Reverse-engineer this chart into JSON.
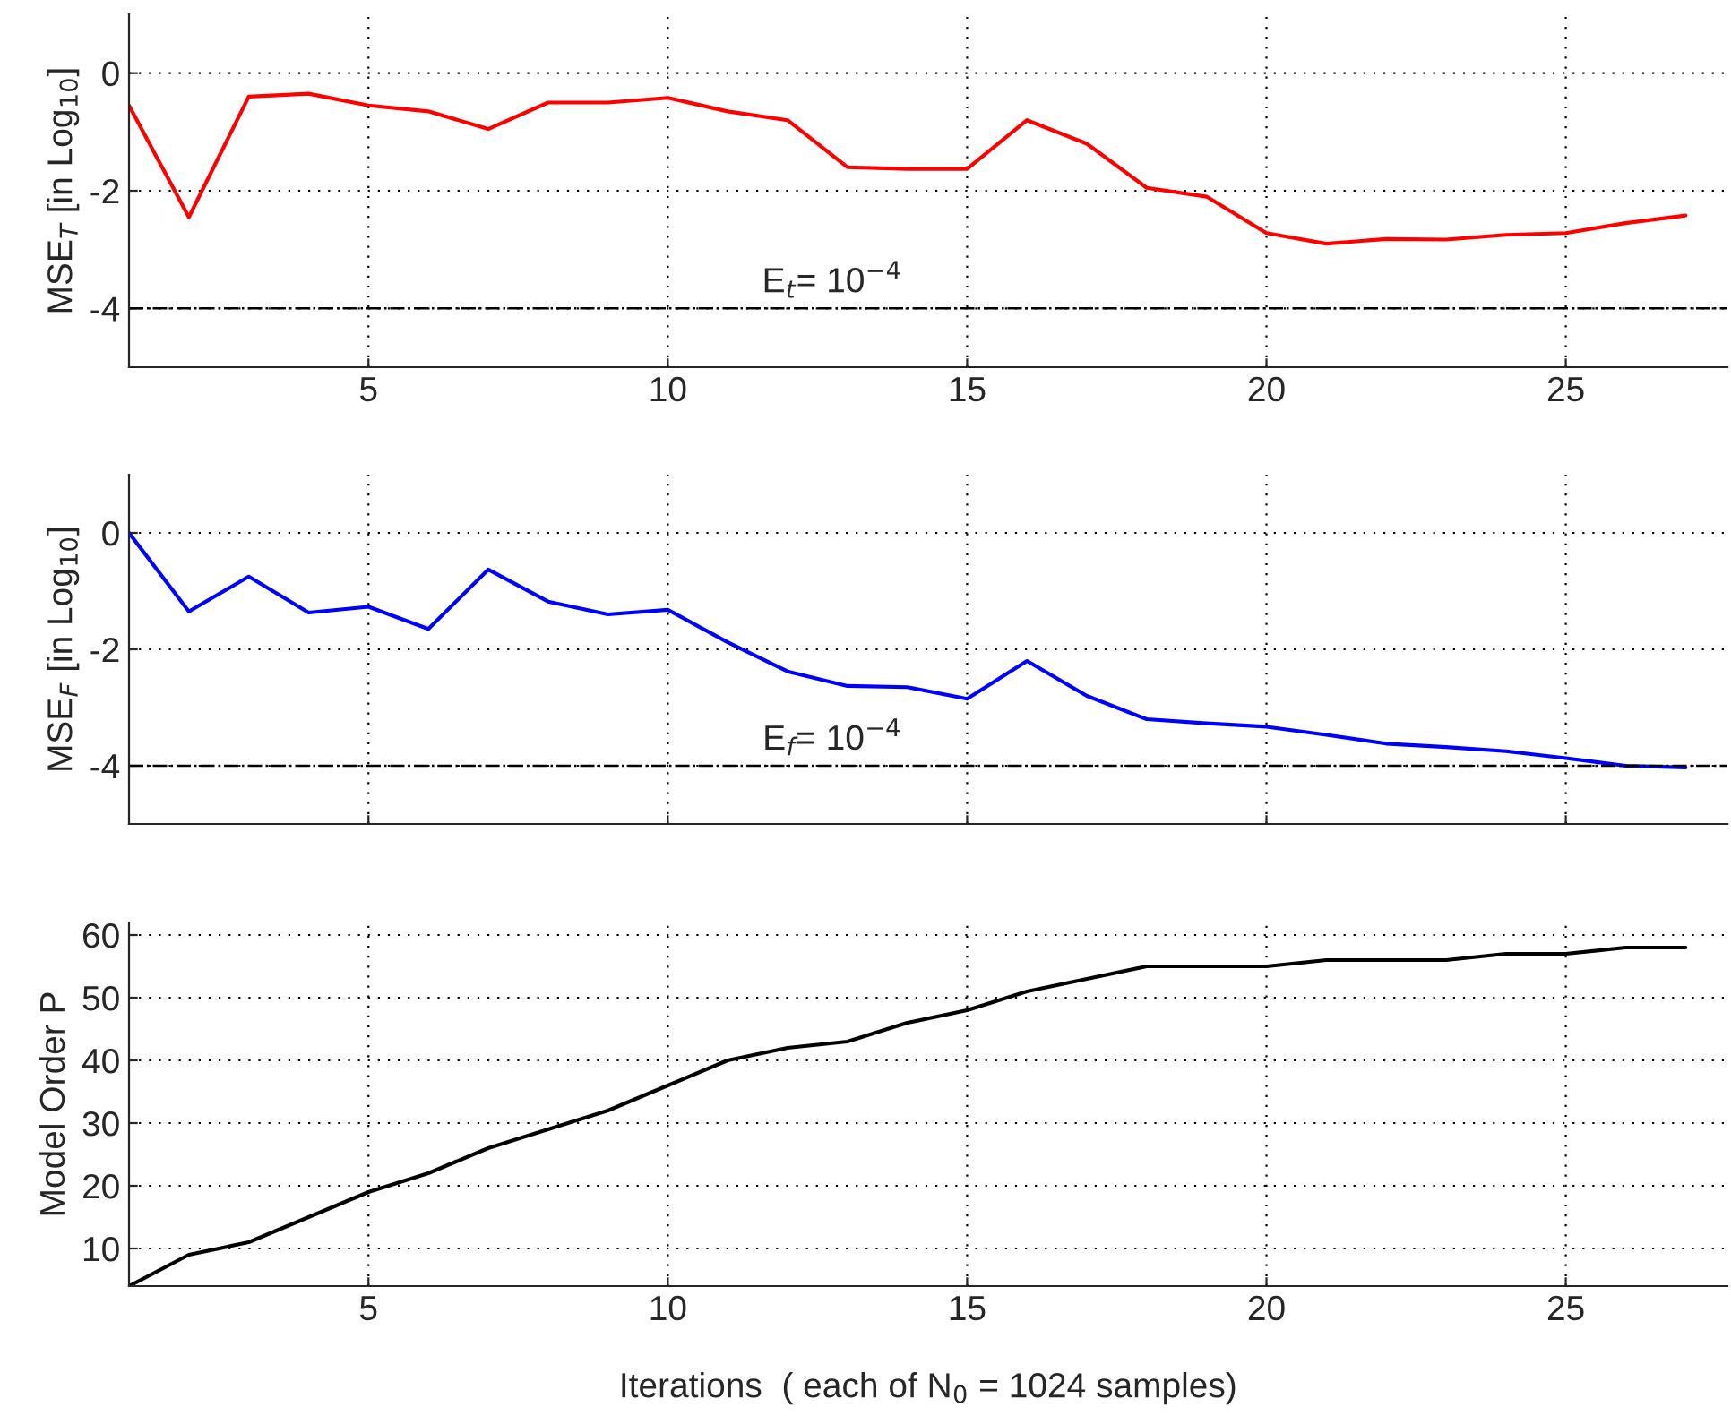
{
  "chart_data": [
    {
      "type": "line",
      "ylabel": "MSE$_{T}$ [in Log$_{10}$]",
      "x": [
        1,
        2,
        3,
        4,
        5,
        6,
        7,
        8,
        9,
        10,
        11,
        12,
        13,
        14,
        15,
        16,
        17,
        18,
        19,
        20,
        21,
        22,
        23,
        24,
        25,
        26,
        27
      ],
      "series": [
        {
          "color": "#ff0000",
          "values": [
            -0.55,
            -2.45,
            -0.4,
            -0.35,
            -0.55,
            -0.65,
            -0.95,
            -0.5,
            -0.5,
            -0.42,
            -0.65,
            -0.8,
            -1.6,
            -1.63,
            -1.63,
            -0.8,
            -1.2,
            -1.95,
            -2.1,
            -2.72,
            -2.9,
            -2.82,
            -2.83,
            -2.75,
            -2.72,
            -2.55,
            -2.42
          ]
        }
      ],
      "xlim": [
        1,
        27.7
      ],
      "xticks": [
        5,
        10,
        15,
        20,
        25
      ],
      "ylim": [
        -5,
        1
      ],
      "yticks": [
        -4,
        -2,
        0
      ],
      "grid": true,
      "ref_lines": [
        {
          "axis": "y",
          "value": -4,
          "label": "E$_{t}$= 10$^{−4}$",
          "color": "#000000",
          "line_style": "dashdot"
        }
      ]
    },
    {
      "type": "line",
      "ylabel": "MSE$_{F}$ [in Log$_{10}$]",
      "x": [
        1,
        2,
        3,
        4,
        5,
        6,
        7,
        8,
        9,
        10,
        11,
        12,
        13,
        14,
        15,
        16,
        17,
        18,
        19,
        20,
        21,
        22,
        23,
        24,
        25,
        26,
        27
      ],
      "series": [
        {
          "color": "#0000ff",
          "values": [
            0,
            -1.35,
            -0.75,
            -1.37,
            -1.27,
            -1.65,
            -0.63,
            -1.18,
            -1.4,
            -1.32,
            -1.88,
            -2.38,
            -2.63,
            -2.65,
            -2.85,
            -2.2,
            -2.8,
            -3.2,
            -3.27,
            -3.33,
            -3.47,
            -3.62,
            -3.68,
            -3.75,
            -3.87,
            -4.0,
            -4.03
          ]
        }
      ],
      "xlim": [
        1,
        27.7
      ],
      "xticks": [
        5,
        10,
        15,
        20,
        25
      ],
      "ylim": [
        -5,
        1
      ],
      "yticks": [
        -4,
        -2,
        0
      ],
      "grid": true,
      "tick_labels": "y",
      "ref_lines": [
        {
          "axis": "y",
          "value": -4,
          "label": "E$_{f}$= 10$^{−4}$",
          "color": "#000000",
          "line_style": "dashdot"
        }
      ]
    },
    {
      "type": "line",
      "ylabel": "Model Order P",
      "xlabel": "Iterations  ( each of N$_{0}$ = 1024 samples)",
      "x": [
        1,
        2,
        3,
        4,
        5,
        6,
        7,
        8,
        9,
        10,
        11,
        12,
        13,
        14,
        15,
        16,
        17,
        18,
        19,
        20,
        21,
        22,
        23,
        24,
        25,
        26,
        27
      ],
      "series": [
        {
          "color": "#000000",
          "values": [
            4,
            9,
            11,
            15,
            19,
            22,
            26,
            29,
            32,
            36,
            40,
            42,
            43,
            46,
            48,
            51,
            53,
            55,
            55,
            55,
            56,
            56,
            56,
            57,
            57,
            58,
            58
          ]
        }
      ],
      "xlim": [
        1,
        27.7
      ],
      "xticks": [
        5,
        10,
        15,
        20,
        25
      ],
      "ylim": [
        4,
        62
      ],
      "yticks": [
        10,
        20,
        30,
        40,
        50,
        60
      ],
      "grid": true
    }
  ]
}
